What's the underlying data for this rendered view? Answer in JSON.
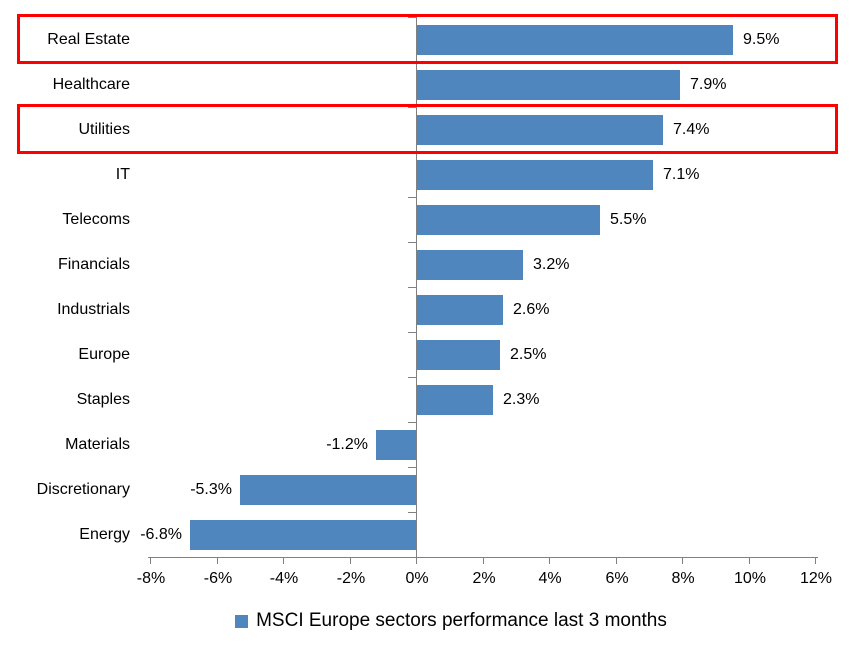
{
  "chart_data": {
    "type": "bar",
    "orientation": "horizontal",
    "title": "",
    "categories": [
      "Real Estate",
      "Healthcare",
      "Utilities",
      "IT",
      "Telecoms",
      "Financials",
      "Industrials",
      "Europe",
      "Staples",
      "Materials",
      "Discretionary",
      "Energy"
    ],
    "values": [
      9.5,
      7.9,
      7.4,
      7.1,
      5.5,
      3.2,
      2.6,
      2.5,
      2.3,
      -1.2,
      -5.3,
      -6.8
    ],
    "value_labels": [
      "9.5%",
      "7.9%",
      "7.4%",
      "7.1%",
      "5.5%",
      "3.2%",
      "2.6%",
      "2.5%",
      "2.3%",
      "-1.2%",
      "-5.3%",
      "-6.8%"
    ],
    "xlim": [
      -8,
      12
    ],
    "x_ticks": {
      "values": [
        -8,
        -6,
        -4,
        -2,
        0,
        2,
        4,
        6,
        8,
        10,
        12
      ],
      "labels": [
        "-8%",
        "-6%",
        "-4%",
        "-2%",
        "0%",
        "2%",
        "4%",
        "6%",
        "8%",
        "10%",
        "12%"
      ]
    },
    "grid": false,
    "legend": {
      "position": "bottom",
      "label": "MSCI Europe sectors performance last 3 months"
    },
    "highlighted_categories": [
      "Real Estate",
      "Utilities"
    ],
    "colors": {
      "bar": "#4E86BD",
      "axis": "#808080",
      "text": "#000000",
      "highlight": "#FF0000"
    }
  }
}
